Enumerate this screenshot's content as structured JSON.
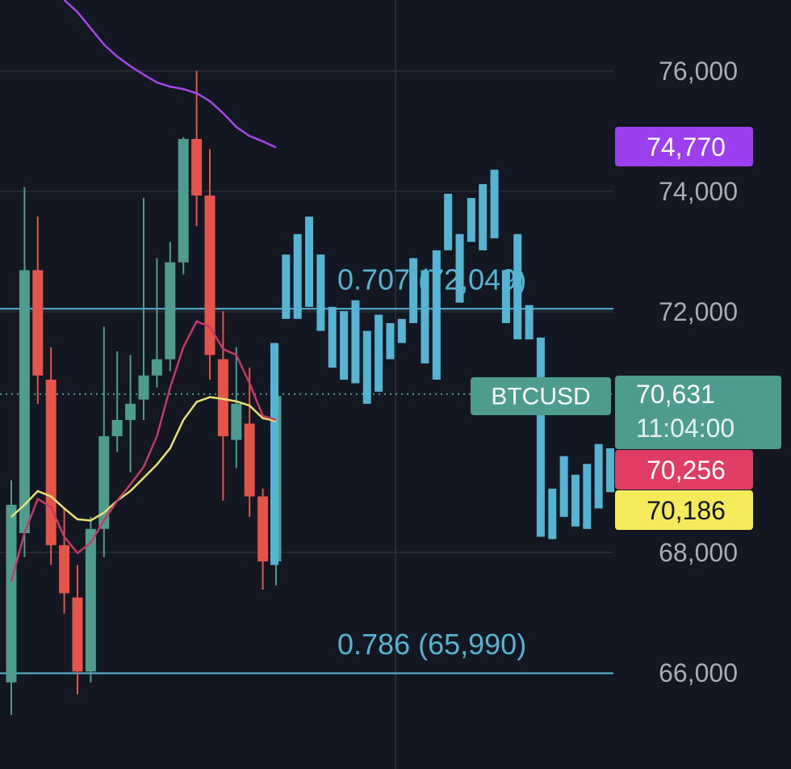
{
  "chart_data": {
    "type": "candlestick",
    "ylim": [
      64400,
      77180
    ],
    "yticks": [
      {
        "value": 66000,
        "label": "66,000"
      },
      {
        "value": 68000,
        "label": "68,000"
      },
      {
        "value": 72000,
        "label": "72,000"
      },
      {
        "value": 74000,
        "label": "74,000"
      },
      {
        "value": 76000,
        "label": "76,000"
      }
    ],
    "grid": true,
    "up_color": "#4e9c90",
    "down_color": "#e4544b",
    "candles": {
      "open": [
        65840,
        68320,
        72690,
        70870,
        68120,
        67250,
        66020,
        68390,
        69930,
        70200,
        70540,
        70940,
        71210,
        72820,
        74870,
        73930,
        71210,
        69870,
        70140,
        68930,
        67850
      ],
      "high": [
        69200,
        74070,
        73580,
        71410,
        68730,
        67790,
        68590,
        71750,
        71340,
        71280,
        73890,
        72890,
        73160,
        74900,
        76000,
        74700,
        72010,
        71410,
        71070,
        69060,
        70630
      ],
      "low": [
        65300,
        67920,
        70470,
        67790,
        66980,
        65640,
        65840,
        67920,
        69670,
        69330,
        70200,
        70740,
        71010,
        72620,
        73420,
        70870,
        68860,
        69400,
        68590,
        67380,
        67450
      ],
      "close": [
        68790,
        72690,
        70940,
        68120,
        67320,
        66020,
        68390,
        69930,
        70200,
        70470,
        70940,
        71210,
        72820,
        74870,
        73930,
        71280,
        69930,
        70470,
        68930,
        67850,
        70600
      ]
    },
    "projection": {
      "color": "#56b4d3",
      "high": [
        71480,
        72950,
        73290,
        73580,
        72950,
        72080,
        72010,
        72190,
        71680,
        71950,
        71810,
        71880,
        72890,
        72690,
        73020,
        73960,
        73290,
        73890,
        74120,
        74360,
        72690,
        73290,
        72110,
        71570,
        69060,
        69600,
        69290,
        69470,
        69800,
        69730
      ],
      "low": [
        67790,
        71880,
        71880,
        72080,
        71680,
        71070,
        70870,
        70810,
        70470,
        70670,
        71210,
        71480,
        71810,
        71140,
        70870,
        73020,
        72150,
        73160,
        73020,
        73220,
        71810,
        71540,
        71540,
        68260,
        68220,
        68590,
        68430,
        68390,
        68730,
        69000
      ]
    },
    "lines": [
      {
        "color": "#e8e070",
        "values": [
          68590,
          68790,
          69020,
          68930,
          68730,
          68550,
          68530,
          68660,
          68860,
          69020,
          69240,
          69460,
          69730,
          70200,
          70500,
          70580,
          70550,
          70510,
          70440,
          70230,
          70180
        ]
      },
      {
        "color": "#c43a66",
        "values": [
          67520,
          68320,
          68890,
          68750,
          68260,
          67990,
          68160,
          68530,
          68860,
          69130,
          69420,
          69930,
          70740,
          71410,
          71840,
          71750,
          71380,
          71280,
          70810,
          70270,
          70200
        ]
      },
      {
        "color": "#a745ec",
        "values": [
          null,
          null,
          null,
          null,
          77180,
          76980,
          76710,
          76440,
          76240,
          76080,
          75940,
          75810,
          75740,
          75700,
          75630,
          75500,
          75300,
          75070,
          74920,
          74830,
          74730
        ]
      }
    ],
    "fib_levels": [
      {
        "value": 72049,
        "label": "0.707 (72,049)",
        "color": "#56b4d3"
      },
      {
        "value": 65990,
        "label": "0.786 (65,990)",
        "color": "#56b4d3"
      }
    ],
    "current_price": {
      "value": 70631,
      "label": "70,631",
      "countdown": "11:04:00",
      "symbol": "BTCUSD",
      "color": "#4e9c90"
    },
    "price_labels": [
      {
        "value": 74770,
        "label": "74,770",
        "color": "#9c3ff0",
        "text_color": "#ffffff"
      },
      {
        "value": 70256,
        "label": "70,256",
        "color": "#df3d63",
        "text_color": "#ffffff"
      },
      {
        "value": 70186,
        "label": "70,186",
        "color": "#f5ea5a",
        "text_color": "#131722"
      }
    ]
  }
}
